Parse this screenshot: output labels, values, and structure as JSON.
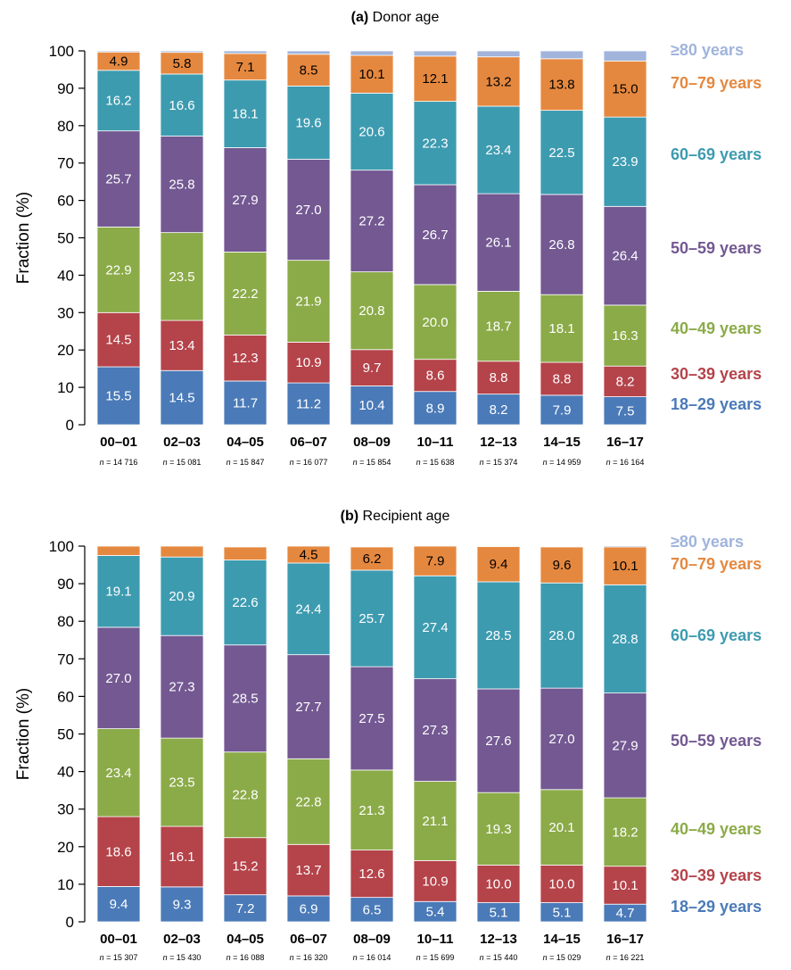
{
  "chart_data": [
    {
      "type": "bar",
      "stacked": true,
      "title_prefix": "(a)",
      "title": "Donor age",
      "ylabel": "Fraction (%)",
      "ylim": [
        0,
        100
      ],
      "yticks": [
        0,
        10,
        20,
        30,
        40,
        50,
        60,
        70,
        80,
        90,
        100
      ],
      "categories": [
        "00–01",
        "02–03",
        "04–05",
        "06–07",
        "08–09",
        "10–11",
        "12–13",
        "14–15",
        "16–17"
      ],
      "n_labels": [
        "n = 14 716",
        "n = 15 081",
        "n = 15 847",
        "n = 16 077",
        "n = 15 854",
        "n = 15 638",
        "n = 15 374",
        "n = 14 959",
        "n = 16 164"
      ],
      "legend_position": "right",
      "series": [
        {
          "name": "18–29 years",
          "color": "#4a7ab8",
          "label_color": "#ffffff",
          "values": [
            15.5,
            14.5,
            11.7,
            11.2,
            10.4,
            8.9,
            8.2,
            7.9,
            7.5
          ],
          "labels": [
            "15.5",
            "14.5",
            "11.7",
            "11.2",
            "10.4",
            "8.9",
            "8.2",
            "7.9",
            "7.5"
          ]
        },
        {
          "name": "30–39 years",
          "color": "#b5434a",
          "label_color": "#ffffff",
          "values": [
            14.5,
            13.4,
            12.3,
            10.9,
            9.7,
            8.6,
            8.8,
            8.8,
            8.2
          ],
          "labels": [
            "14.5",
            "13.4",
            "12.3",
            "10.9",
            "9.7",
            "8.6",
            "8.8",
            "8.8",
            "8.2"
          ]
        },
        {
          "name": "40–49 years",
          "color": "#8bab48",
          "label_color": "#ffffff",
          "values": [
            22.9,
            23.5,
            22.2,
            21.9,
            20.8,
            20.0,
            18.7,
            18.1,
            16.3
          ],
          "labels": [
            "22.9",
            "23.5",
            "22.2",
            "21.9",
            "20.8",
            "20.0",
            "18.7",
            "18.1",
            "16.3"
          ]
        },
        {
          "name": "50–59 years",
          "color": "#735892",
          "label_color": "#ffffff",
          "values": [
            25.7,
            25.8,
            27.9,
            27.0,
            27.2,
            26.7,
            26.1,
            26.8,
            26.4
          ],
          "labels": [
            "25.7",
            "25.8",
            "27.9",
            "27.0",
            "27.2",
            "26.7",
            "26.1",
            "26.8",
            "26.4"
          ]
        },
        {
          "name": "60–69 years",
          "color": "#3d9bb0",
          "label_color": "#ffffff",
          "values": [
            16.2,
            16.6,
            18.1,
            19.6,
            20.6,
            22.3,
            23.4,
            22.5,
            23.9
          ],
          "labels": [
            "16.2",
            "16.6",
            "18.1",
            "19.6",
            "20.6",
            "22.3",
            "23.4",
            "22.5",
            "23.9"
          ]
        },
        {
          "name": "70–79 years",
          "color": "#e5883f",
          "label_color": "#000000",
          "values": [
            4.9,
            5.8,
            7.1,
            8.5,
            10.1,
            12.1,
            13.2,
            13.8,
            15.0
          ],
          "labels": [
            "4.9",
            "5.8",
            "7.1",
            "8.5",
            "10.1",
            "12.1",
            "13.2",
            "13.8",
            "15.0"
          ]
        },
        {
          "name": "≥80 years",
          "color": "#a0b4dc",
          "label_color": "#000000",
          "values": [
            0.3,
            0.4,
            0.7,
            0.9,
            1.2,
            1.4,
            1.6,
            2.1,
            2.7
          ],
          "labels": [
            "",
            "",
            "",
            "",
            "",
            "",
            "",
            "",
            ""
          ]
        }
      ]
    },
    {
      "type": "bar",
      "stacked": true,
      "title_prefix": "(b)",
      "title": "Recipient age",
      "ylabel": "Fraction (%)",
      "ylim": [
        0,
        100
      ],
      "yticks": [
        0,
        10,
        20,
        30,
        40,
        50,
        60,
        70,
        80,
        90,
        100
      ],
      "categories": [
        "00–01",
        "02–03",
        "04–05",
        "06–07",
        "08–09",
        "10–11",
        "12–13",
        "14–15",
        "16–17"
      ],
      "n_labels": [
        "n = 15 307",
        "n = 15 430",
        "n = 16 088",
        "n = 16 320",
        "n = 16 014",
        "n = 15 699",
        "n = 15 440",
        "n = 15 029",
        "n = 16 221"
      ],
      "legend_position": "right",
      "series": [
        {
          "name": "18–29 years",
          "color": "#4a7ab8",
          "label_color": "#ffffff",
          "values": [
            9.4,
            9.3,
            7.2,
            6.9,
            6.5,
            5.4,
            5.1,
            5.1,
            4.7
          ],
          "labels": [
            "9.4",
            "9.3",
            "7.2",
            "6.9",
            "6.5",
            "5.4",
            "5.1",
            "5.1",
            "4.7"
          ]
        },
        {
          "name": "30–39 years",
          "color": "#b5434a",
          "label_color": "#ffffff",
          "values": [
            18.6,
            16.1,
            15.2,
            13.7,
            12.6,
            10.9,
            10.0,
            10.0,
            10.1
          ],
          "labels": [
            "18.6",
            "16.1",
            "15.2",
            "13.7",
            "12.6",
            "10.9",
            "10.0",
            "10.0",
            "10.1"
          ]
        },
        {
          "name": "40–49 years",
          "color": "#8bab48",
          "label_color": "#ffffff",
          "values": [
            23.4,
            23.5,
            22.8,
            22.8,
            21.3,
            21.1,
            19.3,
            20.1,
            18.2
          ],
          "labels": [
            "23.4",
            "23.5",
            "22.8",
            "22.8",
            "21.3",
            "21.1",
            "19.3",
            "20.1",
            "18.2"
          ]
        },
        {
          "name": "50–59 years",
          "color": "#735892",
          "label_color": "#ffffff",
          "values": [
            27.0,
            27.3,
            28.5,
            27.7,
            27.5,
            27.3,
            27.6,
            27.0,
            27.9
          ],
          "labels": [
            "27.0",
            "27.3",
            "28.5",
            "27.7",
            "27.5",
            "27.3",
            "27.6",
            "27.0",
            "27.9"
          ]
        },
        {
          "name": "60–69 years",
          "color": "#3d9bb0",
          "label_color": "#ffffff",
          "values": [
            19.1,
            20.9,
            22.6,
            24.4,
            25.7,
            27.4,
            28.5,
            28.0,
            28.8
          ],
          "labels": [
            "19.1",
            "20.9",
            "22.6",
            "24.4",
            "25.7",
            "27.4",
            "28.5",
            "28.0",
            "28.8"
          ]
        },
        {
          "name": "70–79 years",
          "color": "#e5883f",
          "label_color": "#000000",
          "values": [
            2.5,
            2.9,
            3.5,
            4.5,
            6.2,
            7.9,
            9.4,
            9.6,
            10.1
          ],
          "labels": [
            "",
            "",
            "",
            "4.5",
            "6.2",
            "7.9",
            "9.4",
            "9.6",
            "10.1"
          ]
        },
        {
          "name": "≥80 years",
          "color": "#a0b4dc",
          "label_color": "#000000",
          "values": [
            0.0,
            0.0,
            0.2,
            0.0,
            0.2,
            0.0,
            0.1,
            0.2,
            0.3
          ],
          "labels": [
            "",
            "",
            "",
            "",
            "",
            "",
            "",
            "",
            ""
          ]
        }
      ]
    }
  ]
}
